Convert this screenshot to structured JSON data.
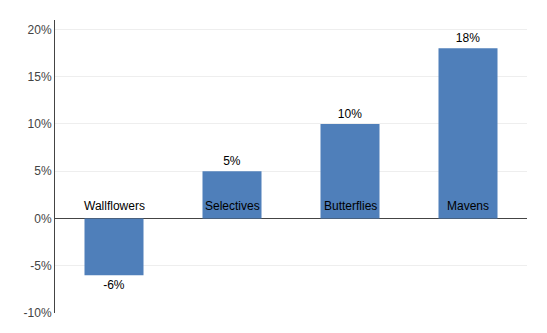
{
  "chart_data": {
    "type": "bar",
    "categories": [
      "Wallflowers",
      "Selectives",
      "Butterflies",
      "Mavens"
    ],
    "values": [
      -6,
      5,
      10,
      18
    ],
    "value_labels": [
      "-6%",
      "5%",
      "10%",
      "18%"
    ],
    "data_labels": true,
    "color": "#4f7fba",
    "ylim": [
      -10,
      21
    ],
    "yticks": [
      {
        "value": -10,
        "label": "-10%"
      },
      {
        "value": -5,
        "label": "-5%"
      },
      {
        "value": 0,
        "label": "0%"
      },
      {
        "value": 5,
        "label": "5%"
      },
      {
        "value": 10,
        "label": "10%"
      },
      {
        "value": 15,
        "label": "15%"
      },
      {
        "value": 20,
        "label": "20%"
      }
    ],
    "grid": true,
    "tick_labels": "y"
  }
}
